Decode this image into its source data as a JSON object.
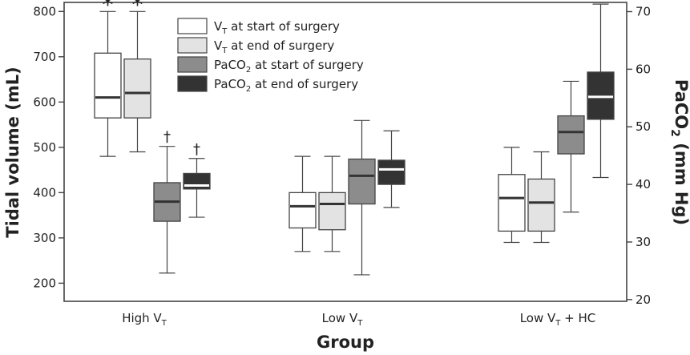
{
  "chart_data": {
    "type": "boxplot",
    "xlabel": "Group",
    "ylabel_left": "Tidal volume (mL)",
    "ylabel_right_main": "PaCO",
    "ylabel_right_sub": "2",
    "ylabel_right_unit": " (mm Hg)",
    "ylim_left": [
      160,
      820
    ],
    "ylim_right": [
      19.7,
      71.6
    ],
    "yticks_left": [
      200,
      300,
      400,
      500,
      600,
      700,
      800
    ],
    "yticks_right": [
      20,
      30,
      40,
      50,
      60,
      70
    ],
    "groups": [
      {
        "label_main": "High V",
        "label_sub": "T",
        "label_suffix": ""
      },
      {
        "label_main": "Low V",
        "label_sub": "T",
        "label_suffix": ""
      },
      {
        "label_main": "Low V",
        "label_sub": "T",
        "label_suffix": " + HC"
      }
    ],
    "series": [
      {
        "name": "VT at start of surgery",
        "legend_main": "V",
        "legend_sub": "T",
        "legend_rest": " at start of surgery",
        "axis": "left",
        "fill": "#ffffff",
        "median_color": "#333333"
      },
      {
        "name": "VT at end of surgery",
        "legend_main": "V",
        "legend_sub": "T",
        "legend_rest": " at end of surgery",
        "axis": "left",
        "fill": "#e3e3e3",
        "median_color": "#333333"
      },
      {
        "name": "PaCO2 at start of surgery",
        "legend_main": "PaCO",
        "legend_sub": "2",
        "legend_rest": " at start of surgery",
        "axis": "right",
        "fill": "#8c8c8c",
        "median_color": "#333333"
      },
      {
        "name": "PaCO2 at end of surgery",
        "legend_main": "PaCO",
        "legend_sub": "2",
        "legend_rest": " at end of surgery",
        "axis": "right",
        "fill": "#333333",
        "median_color": "#ffffff"
      }
    ],
    "boxes": [
      {
        "group": 0,
        "series": 0,
        "min": 480,
        "q1": 565,
        "median": 610,
        "q3": 708,
        "max": 800,
        "marker": "*"
      },
      {
        "group": 0,
        "series": 1,
        "min": 490,
        "q1": 565,
        "median": 620,
        "q3": 695,
        "max": 800,
        "marker": "*"
      },
      {
        "group": 0,
        "series": 2,
        "min": 24.6,
        "q1": 33.6,
        "median": 37.0,
        "q3": 40.3,
        "max": 46.6,
        "marker": "†"
      },
      {
        "group": 0,
        "series": 3,
        "min": 34.3,
        "q1": 39.2,
        "median": 39.8,
        "q3": 41.9,
        "max": 44.5,
        "marker": "†"
      },
      {
        "group": 1,
        "series": 0,
        "min": 270,
        "q1": 322,
        "median": 370,
        "q3": 400,
        "max": 480,
        "marker": ""
      },
      {
        "group": 1,
        "series": 1,
        "min": 270,
        "q1": 318,
        "median": 375,
        "q3": 400,
        "max": 480,
        "marker": ""
      },
      {
        "group": 1,
        "series": 2,
        "min": 24.3,
        "q1": 36.6,
        "median": 41.5,
        "q3": 44.4,
        "max": 51.1,
        "marker": ""
      },
      {
        "group": 1,
        "series": 3,
        "min": 36.0,
        "q1": 40.0,
        "median": 42.6,
        "q3": 44.2,
        "max": 49.3,
        "marker": ""
      },
      {
        "group": 2,
        "series": 0,
        "min": 290,
        "q1": 315,
        "median": 388,
        "q3": 440,
        "max": 500,
        "marker": ""
      },
      {
        "group": 2,
        "series": 1,
        "min": 290,
        "q1": 315,
        "median": 378,
        "q3": 430,
        "max": 490,
        "marker": ""
      },
      {
        "group": 2,
        "series": 2,
        "min": 35.2,
        "q1": 45.3,
        "median": 49.1,
        "q3": 51.9,
        "max": 57.9,
        "marker": ""
      },
      {
        "group": 2,
        "series": 3,
        "min": 41.2,
        "q1": 51.3,
        "median": 55.2,
        "q3": 59.5,
        "max": 71.3,
        "marker": ""
      }
    ]
  }
}
